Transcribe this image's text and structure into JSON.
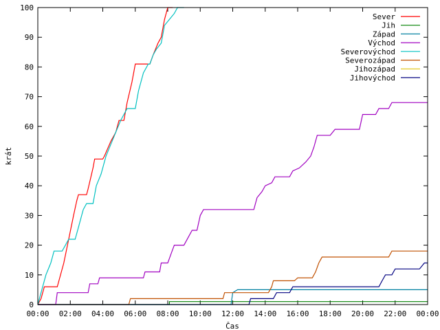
{
  "chart_data": {
    "type": "line",
    "xlabel": "Čas",
    "ylabel": "krát",
    "xlim": [
      0,
      24
    ],
    "ylim": [
      0,
      100
    ],
    "x_ticks": [
      {
        "value": 0,
        "label": "00:00"
      },
      {
        "value": 2,
        "label": "02:00"
      },
      {
        "value": 4,
        "label": "04:00"
      },
      {
        "value": 6,
        "label": "06:00"
      },
      {
        "value": 8,
        "label": "08:00"
      },
      {
        "value": 10,
        "label": "10:00"
      },
      {
        "value": 12,
        "label": "12:00"
      },
      {
        "value": 14,
        "label": "14:00"
      },
      {
        "value": 16,
        "label": "16:00"
      },
      {
        "value": 18,
        "label": "18:00"
      },
      {
        "value": 20,
        "label": "20:00"
      },
      {
        "value": 22,
        "label": "22:00"
      },
      {
        "value": 24,
        "label": "00:00"
      }
    ],
    "y_ticks": [
      0,
      10,
      20,
      30,
      40,
      50,
      60,
      70,
      80,
      90,
      100
    ],
    "grid": false,
    "legend_position": "top-right",
    "series": [
      {
        "name": "Sever",
        "color": "#ff0000",
        "points": [
          [
            0,
            0
          ],
          [
            0.2,
            2
          ],
          [
            0.4,
            6
          ],
          [
            1.2,
            6
          ],
          [
            1.3,
            8
          ],
          [
            1.6,
            14
          ],
          [
            1.9,
            22
          ],
          [
            2.2,
            30
          ],
          [
            2.4,
            35
          ],
          [
            2.5,
            37
          ],
          [
            3.0,
            37
          ],
          [
            3.1,
            39
          ],
          [
            3.4,
            46
          ],
          [
            3.5,
            49
          ],
          [
            4.0,
            49
          ],
          [
            4.1,
            50
          ],
          [
            4.5,
            55
          ],
          [
            4.8,
            58
          ],
          [
            5.0,
            62
          ],
          [
            5.3,
            62
          ],
          [
            5.5,
            68
          ],
          [
            5.8,
            75
          ],
          [
            6.0,
            81
          ],
          [
            6.9,
            81
          ],
          [
            7.1,
            84
          ],
          [
            7.4,
            88
          ],
          [
            7.6,
            90
          ],
          [
            7.8,
            96
          ],
          [
            8.0,
            100
          ],
          [
            8.3,
            100
          ]
        ]
      },
      {
        "name": "Jih",
        "color": "#008000",
        "points": [
          [
            0,
            0
          ],
          [
            8.1,
            0
          ],
          [
            8.1,
            1
          ],
          [
            24,
            1
          ]
        ]
      },
      {
        "name": "Západ",
        "color": "#0080a0",
        "points": [
          [
            0,
            0
          ],
          [
            11.9,
            0
          ],
          [
            12.0,
            4
          ],
          [
            12.3,
            5
          ],
          [
            24,
            5
          ]
        ]
      },
      {
        "name": "Východ",
        "color": "#a000c0",
        "points": [
          [
            0,
            0
          ],
          [
            1.1,
            0
          ],
          [
            1.2,
            4
          ],
          [
            3.1,
            4
          ],
          [
            3.2,
            7
          ],
          [
            3.7,
            7
          ],
          [
            3.8,
            9
          ],
          [
            6.5,
            9
          ],
          [
            6.6,
            11
          ],
          [
            7.5,
            11
          ],
          [
            7.6,
            14
          ],
          [
            8.0,
            14
          ],
          [
            8.2,
            17
          ],
          [
            8.4,
            20
          ],
          [
            9.0,
            20
          ],
          [
            9.3,
            23
          ],
          [
            9.5,
            25
          ],
          [
            9.8,
            25
          ],
          [
            10.0,
            30
          ],
          [
            10.2,
            32
          ],
          [
            13.3,
            32
          ],
          [
            13.5,
            36
          ],
          [
            13.8,
            38
          ],
          [
            14.0,
            40
          ],
          [
            14.4,
            41
          ],
          [
            14.6,
            43
          ],
          [
            15.5,
            43
          ],
          [
            15.7,
            45
          ],
          [
            16.1,
            46
          ],
          [
            16.5,
            48
          ],
          [
            16.8,
            50
          ],
          [
            17.0,
            53
          ],
          [
            17.2,
            57
          ],
          [
            18.0,
            57
          ],
          [
            18.3,
            59
          ],
          [
            19.8,
            59
          ],
          [
            20.0,
            64
          ],
          [
            20.8,
            64
          ],
          [
            21.0,
            66
          ],
          [
            21.6,
            66
          ],
          [
            21.8,
            68
          ],
          [
            24,
            68
          ]
        ]
      },
      {
        "name": "Severovýchod",
        "color": "#00c0c0",
        "points": [
          [
            0,
            0
          ],
          [
            0.2,
            4
          ],
          [
            0.5,
            10
          ],
          [
            0.8,
            14
          ],
          [
            1.0,
            18
          ],
          [
            1.5,
            18
          ],
          [
            1.7,
            20
          ],
          [
            1.9,
            22
          ],
          [
            2.3,
            22
          ],
          [
            2.5,
            26
          ],
          [
            2.8,
            32
          ],
          [
            3.0,
            34
          ],
          [
            3.4,
            34
          ],
          [
            3.6,
            40
          ],
          [
            3.9,
            44
          ],
          [
            4.2,
            50
          ],
          [
            4.5,
            54
          ],
          [
            4.8,
            58
          ],
          [
            5.1,
            62
          ],
          [
            5.3,
            64
          ],
          [
            5.5,
            66
          ],
          [
            6.0,
            66
          ],
          [
            6.2,
            72
          ],
          [
            6.5,
            78
          ],
          [
            6.8,
            81
          ],
          [
            6.9,
            81
          ],
          [
            7.1,
            84
          ],
          [
            7.3,
            86
          ],
          [
            7.6,
            88
          ],
          [
            7.8,
            94
          ],
          [
            8.1,
            96
          ],
          [
            8.4,
            98
          ],
          [
            8.6,
            100
          ],
          [
            9.0,
            100
          ]
        ]
      },
      {
        "name": "Severozápad",
        "color": "#c05000",
        "points": [
          [
            0,
            0
          ],
          [
            5.6,
            0
          ],
          [
            5.7,
            2
          ],
          [
            11.4,
            2
          ],
          [
            11.5,
            4
          ],
          [
            14.2,
            4
          ],
          [
            14.4,
            6
          ],
          [
            14.5,
            8
          ],
          [
            15.8,
            8
          ],
          [
            16.0,
            9
          ],
          [
            16.9,
            9
          ],
          [
            17.1,
            11
          ],
          [
            17.3,
            14
          ],
          [
            17.5,
            16
          ],
          [
            21.6,
            16
          ],
          [
            21.8,
            18
          ],
          [
            24,
            18
          ]
        ]
      },
      {
        "name": "Jihozápad",
        "color": "#e0c000",
        "points": []
      },
      {
        "name": "Jihovýchod",
        "color": "#000080",
        "points": [
          [
            0,
            0
          ],
          [
            13.0,
            0
          ],
          [
            13.1,
            2
          ],
          [
            14.5,
            2
          ],
          [
            14.7,
            4
          ],
          [
            15.5,
            4
          ],
          [
            15.7,
            6
          ],
          [
            21.0,
            6
          ],
          [
            21.2,
            8
          ],
          [
            21.4,
            10
          ],
          [
            21.8,
            10
          ],
          [
            22.0,
            12
          ],
          [
            23.5,
            12
          ],
          [
            23.8,
            14
          ],
          [
            24,
            14
          ]
        ]
      }
    ]
  }
}
